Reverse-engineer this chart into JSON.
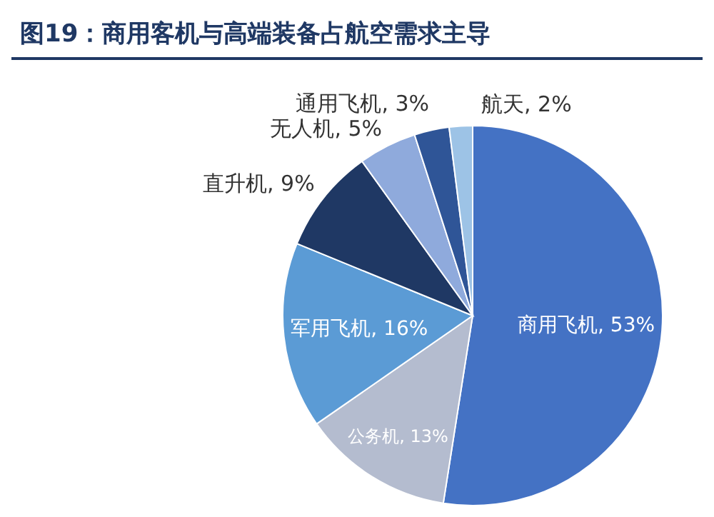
{
  "chart_data": {
    "type": "pie",
    "title": "图19：商用客机与高端装备占航空需求主导",
    "categories": [
      "商用飞机",
      "公务机",
      "军用飞机",
      "直升机",
      "无人机",
      "通用飞机",
      "航天"
    ],
    "values": [
      53,
      13,
      16,
      9,
      5,
      3,
      2
    ],
    "value_labels": [
      "53%",
      "13%",
      "16%",
      "9%",
      "5%",
      "3%",
      "2%"
    ],
    "colors": [
      "#4472c4",
      "#b4bccf",
      "#5b9bd5",
      "#1f3864",
      "#8faadc",
      "#2f5597",
      "#9dc3e6"
    ],
    "legend": false
  }
}
